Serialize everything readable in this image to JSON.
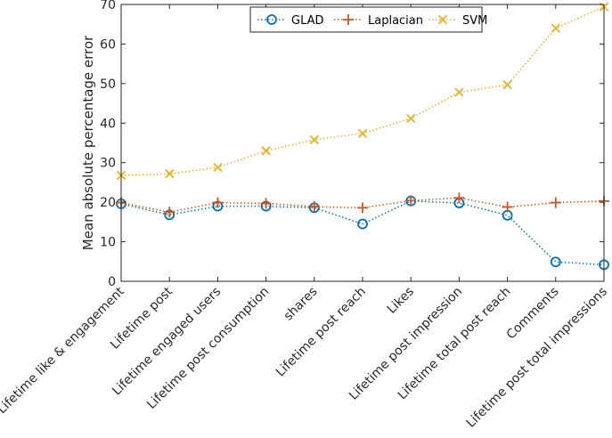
{
  "chart_data": {
    "type": "line",
    "ylabel": "Mean absolute percentage error",
    "xlabel": "",
    "ylim": [
      0,
      70
    ],
    "yticks": [
      0,
      10,
      20,
      30,
      40,
      50,
      60,
      70
    ],
    "grid": false,
    "legend_position": "top",
    "categories": [
      "Lifetime like & engagement",
      "Lifetime post",
      "Lifetime engaged users",
      "Lifetime post consumption",
      "shares",
      "Lifetime post reach",
      "Likes",
      "Lifetime post impression",
      "Lifetime total post reach",
      "Comments",
      "Lifetime post total impressions"
    ],
    "series": [
      {
        "name": "GLAD",
        "color": "#0072BD",
        "marker": "circle",
        "values": [
          19.6,
          16.8,
          19.0,
          19.0,
          18.6,
          14.5,
          20.3,
          19.8,
          16.7,
          4.9,
          4.2
        ]
      },
      {
        "name": "Laplacian",
        "color": "#D95319",
        "marker": "plus",
        "values": [
          19.9,
          17.5,
          19.9,
          19.7,
          18.9,
          18.6,
          20.4,
          21.1,
          18.8,
          19.9,
          20.3
        ]
      },
      {
        "name": "SVM",
        "color": "#EDB120",
        "marker": "x",
        "values": [
          26.8,
          27.2,
          28.8,
          33.0,
          35.8,
          37.4,
          41.2,
          47.8,
          49.7,
          64.0,
          69.4
        ]
      }
    ]
  }
}
